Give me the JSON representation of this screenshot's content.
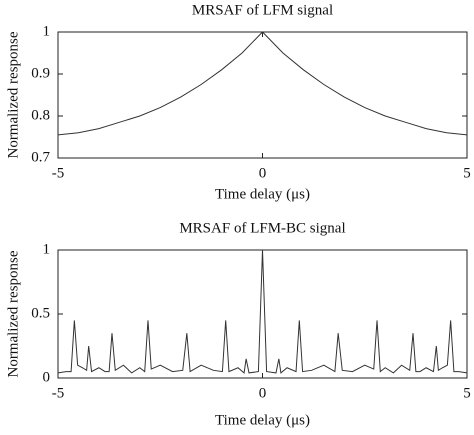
{
  "chart_data": [
    {
      "type": "line",
      "title": "MRSAF of LFM signal",
      "xlabel": "Time delay (μs)",
      "ylabel": "Normalized response",
      "x": [
        -5,
        -4.5,
        -4,
        -3.5,
        -3,
        -2.5,
        -2,
        -1.5,
        -1,
        -0.5,
        0,
        0.5,
        1,
        1.5,
        2,
        2.5,
        3,
        3.5,
        4,
        4.5,
        5
      ],
      "values": [
        0.755,
        0.76,
        0.77,
        0.785,
        0.8,
        0.82,
        0.845,
        0.875,
        0.91,
        0.95,
        1.0,
        0.95,
        0.91,
        0.875,
        0.845,
        0.82,
        0.8,
        0.785,
        0.77,
        0.76,
        0.755
      ],
      "color": "#333333",
      "xlim": [
        -5,
        5
      ],
      "ylim": [
        0.7,
        1
      ],
      "xticks": [
        -5,
        0,
        5
      ],
      "yticks": [
        0.7,
        0.8,
        0.9,
        1
      ]
    },
    {
      "type": "line",
      "title": "MRSAF of LFM-BC signal",
      "xlabel": "Time delay (μs)",
      "ylabel": "Normalized response",
      "x": [
        -5,
        -4.8,
        -4.68,
        -4.6,
        -4.52,
        -4.4,
        -4.3,
        -4.25,
        -4.18,
        -4.0,
        -3.85,
        -3.75,
        -3.68,
        -3.6,
        -3.4,
        -3.2,
        -3.0,
        -2.88,
        -2.8,
        -2.72,
        -2.5,
        -2.2,
        -1.95,
        -1.85,
        -1.77,
        -1.5,
        -1.2,
        -0.98,
        -0.9,
        -0.82,
        -0.6,
        -0.45,
        -0.4,
        -0.33,
        -0.1,
        0,
        0.1,
        0.33,
        0.4,
        0.45,
        0.6,
        0.82,
        0.9,
        0.98,
        1.2,
        1.5,
        1.77,
        1.85,
        1.95,
        2.2,
        2.5,
        2.72,
        2.8,
        2.88,
        3.0,
        3.2,
        3.4,
        3.6,
        3.68,
        3.75,
        3.85,
        4.0,
        4.18,
        4.25,
        4.3,
        4.4,
        4.52,
        4.6,
        4.68,
        4.8,
        5
      ],
      "values": [
        0.04,
        0.05,
        0.05,
        0.45,
        0.1,
        0.08,
        0.06,
        0.25,
        0.05,
        0.08,
        0.05,
        0.05,
        0.35,
        0.06,
        0.1,
        0.04,
        0.08,
        0.05,
        0.45,
        0.07,
        0.1,
        0.05,
        0.06,
        0.35,
        0.05,
        0.1,
        0.06,
        0.05,
        0.45,
        0.05,
        0.08,
        0.04,
        0.15,
        0.04,
        0.05,
        1.0,
        0.05,
        0.04,
        0.15,
        0.04,
        0.08,
        0.05,
        0.45,
        0.05,
        0.06,
        0.1,
        0.05,
        0.35,
        0.06,
        0.05,
        0.1,
        0.07,
        0.45,
        0.05,
        0.08,
        0.04,
        0.1,
        0.06,
        0.35,
        0.05,
        0.05,
        0.08,
        0.05,
        0.25,
        0.06,
        0.08,
        0.1,
        0.45,
        0.05,
        0.05,
        0.04
      ],
      "color": "#333333",
      "xlim": [
        -5,
        5
      ],
      "ylim": [
        0,
        1
      ],
      "xticks": [
        -5,
        0,
        5
      ],
      "yticks": [
        0,
        0.5,
        1
      ]
    }
  ]
}
